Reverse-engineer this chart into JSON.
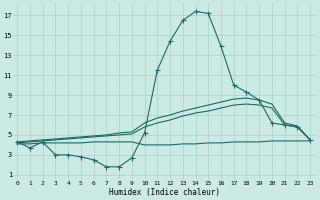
{
  "xlabel": "Humidex (Indice chaleur)",
  "bg_color": "#cceae4",
  "grid_color": "#aacfc8",
  "line_color": "#1a6b60",
  "x_ticks": [
    0,
    1,
    2,
    3,
    4,
    5,
    6,
    7,
    8,
    9,
    10,
    11,
    12,
    13,
    14,
    15,
    16,
    17,
    18,
    19,
    20,
    21,
    22,
    23
  ],
  "y_ticks": [
    1,
    3,
    5,
    7,
    9,
    11,
    13,
    15,
    17
  ],
  "xlim": [
    -0.3,
    23.5
  ],
  "ylim": [
    0.5,
    18.2
  ],
  "line1_x": [
    0,
    1,
    2,
    3,
    4,
    5,
    6,
    7,
    8,
    9,
    10,
    11,
    12,
    13,
    14,
    15,
    16,
    17,
    18,
    19,
    20,
    21,
    22,
    23
  ],
  "line1_y": [
    4.3,
    3.7,
    4.3,
    3.0,
    3.0,
    2.8,
    2.5,
    1.8,
    1.8,
    2.7,
    5.2,
    11.5,
    14.4,
    16.5,
    17.4,
    17.2,
    13.9,
    10.0,
    9.3,
    8.5,
    6.2,
    6.0,
    5.8,
    4.5
  ],
  "line2_x": [
    0,
    1,
    2,
    3,
    4,
    5,
    6,
    7,
    8,
    9,
    10,
    11,
    12,
    13,
    14,
    15,
    16,
    17,
    18,
    19,
    20,
    21,
    22,
    23
  ],
  "line2_y": [
    4.3,
    4.4,
    4.5,
    4.6,
    4.7,
    4.8,
    4.9,
    5.0,
    5.2,
    5.3,
    6.2,
    6.7,
    7.0,
    7.4,
    7.7,
    8.0,
    8.3,
    8.6,
    8.7,
    8.5,
    8.1,
    6.2,
    5.9,
    4.5
  ],
  "line3_x": [
    0,
    1,
    2,
    3,
    4,
    5,
    6,
    7,
    8,
    9,
    10,
    11,
    12,
    13,
    14,
    15,
    16,
    17,
    18,
    19,
    20,
    21,
    22,
    23
  ],
  "line3_y": [
    4.2,
    4.3,
    4.4,
    4.5,
    4.6,
    4.7,
    4.8,
    4.9,
    5.0,
    5.1,
    5.8,
    6.2,
    6.5,
    6.9,
    7.2,
    7.4,
    7.7,
    8.0,
    8.1,
    8.0,
    7.7,
    6.0,
    5.8,
    4.5
  ],
  "line4_x": [
    0,
    1,
    2,
    3,
    4,
    5,
    6,
    7,
    8,
    9,
    10,
    11,
    12,
    13,
    14,
    15,
    16,
    17,
    18,
    19,
    20,
    21,
    22,
    23
  ],
  "line4_y": [
    4.1,
    4.1,
    4.2,
    4.2,
    4.2,
    4.2,
    4.3,
    4.3,
    4.3,
    4.3,
    4.0,
    4.0,
    4.0,
    4.1,
    4.1,
    4.2,
    4.2,
    4.3,
    4.3,
    4.3,
    4.4,
    4.4,
    4.4,
    4.4
  ]
}
